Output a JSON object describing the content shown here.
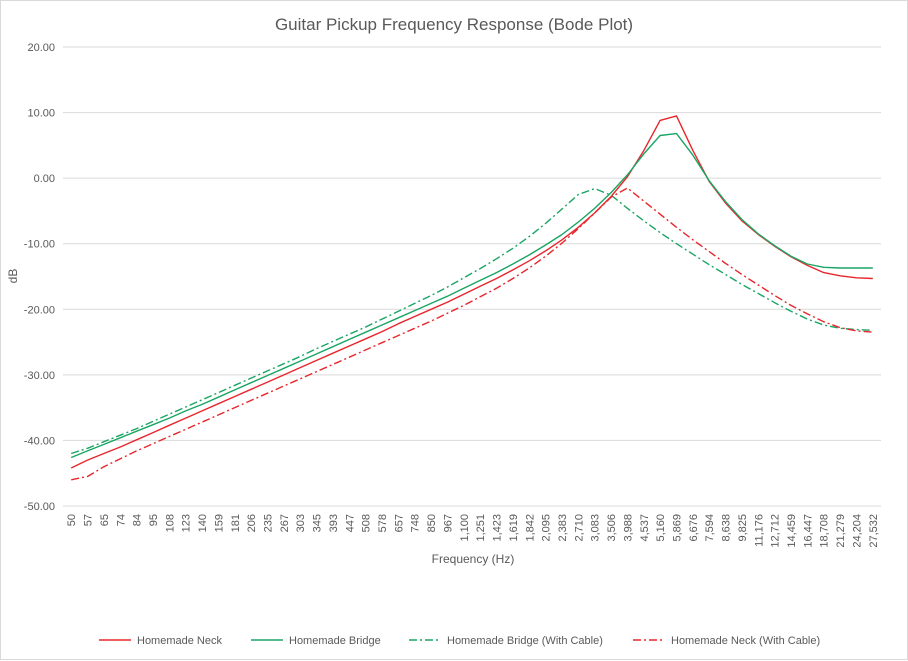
{
  "chart_data": {
    "type": "line",
    "title": "Guitar Pickup Frequency Response (Bode Plot)",
    "xlabel": "Frequency (Hz)",
    "ylabel": "dB",
    "ylim": [
      -50,
      20
    ],
    "y_ticks": [
      "20.00",
      "10.00",
      "0.00",
      "-10.00",
      "-20.00",
      "-30.00",
      "-40.00",
      "-50.00"
    ],
    "x_tick_labels": [
      "50",
      "57",
      "65",
      "74",
      "84",
      "95",
      "108",
      "123",
      "140",
      "159",
      "181",
      "206",
      "235",
      "267",
      "303",
      "345",
      "393",
      "447",
      "508",
      "578",
      "657",
      "748",
      "850",
      "967",
      "1,100",
      "1,251",
      "1,423",
      "1,619",
      "1,842",
      "2,095",
      "2,383",
      "2,710",
      "3,083",
      "3,506",
      "3,988",
      "4,537",
      "5,160",
      "5,869",
      "6,676",
      "7,594",
      "8,638",
      "9,825",
      "11,176",
      "12,712",
      "14,459",
      "16,447",
      "18,708",
      "21,279",
      "24,204",
      "27,532"
    ],
    "grid": true,
    "legend_position": "bottom",
    "series": [
      {
        "name": "Homemade Neck",
        "color": "#e8262c",
        "dash": "solid",
        "x": [
          50,
          57,
          65,
          74,
          84,
          95,
          108,
          123,
          140,
          159,
          181,
          206,
          235,
          267,
          303,
          345,
          393,
          447,
          508,
          578,
          657,
          748,
          850,
          967,
          1100,
          1251,
          1423,
          1619,
          1842,
          2095,
          2383,
          2710,
          3083,
          3506,
          3988,
          4537,
          5160,
          5869,
          6676,
          7594,
          8638,
          9825,
          11176,
          12712,
          14459,
          16447,
          18708,
          21279,
          24204,
          27532
        ],
        "y": [
          -44.2,
          -43.0,
          -42.0,
          -41.0,
          -39.9,
          -38.8,
          -37.7,
          -36.6,
          -35.5,
          -34.4,
          -33.3,
          -32.2,
          -31.1,
          -30.0,
          -28.9,
          -27.8,
          -26.7,
          -25.6,
          -24.5,
          -23.4,
          -22.2,
          -21.1,
          -20.0,
          -18.9,
          -17.7,
          -16.5,
          -15.3,
          -14.0,
          -12.6,
          -11.1,
          -9.4,
          -7.5,
          -5.3,
          -2.8,
          0.2,
          4.2,
          8.8,
          9.5,
          4.2,
          -0.5,
          -3.8,
          -6.5,
          -8.6,
          -10.4,
          -12.0,
          -13.3,
          -14.4,
          -14.9,
          -15.2,
          -15.3
        ]
      },
      {
        "name": "Homemade Bridge",
        "color": "#1aa564",
        "dash": "solid",
        "x": [
          50,
          57,
          65,
          74,
          84,
          95,
          108,
          123,
          140,
          159,
          181,
          206,
          235,
          267,
          303,
          345,
          393,
          447,
          508,
          578,
          657,
          748,
          850,
          967,
          1100,
          1251,
          1423,
          1619,
          1842,
          2095,
          2383,
          2710,
          3083,
          3506,
          3988,
          4537,
          5160,
          5869,
          6676,
          7594,
          8638,
          9825,
          11176,
          12712,
          14459,
          16447,
          18708,
          21279,
          24204,
          27532
        ],
        "y": [
          -42.6,
          -41.6,
          -40.6,
          -39.6,
          -38.6,
          -37.6,
          -36.6,
          -35.5,
          -34.5,
          -33.4,
          -32.3,
          -31.2,
          -30.1,
          -29.0,
          -27.9,
          -26.8,
          -25.7,
          -24.6,
          -23.5,
          -22.4,
          -21.3,
          -20.2,
          -19.1,
          -18.0,
          -16.8,
          -15.6,
          -14.4,
          -13.1,
          -11.7,
          -10.2,
          -8.6,
          -6.7,
          -4.6,
          -2.2,
          0.5,
          3.7,
          6.5,
          6.8,
          3.5,
          -0.4,
          -3.6,
          -6.3,
          -8.5,
          -10.3,
          -11.9,
          -13.1,
          -13.6,
          -13.7,
          -13.7,
          -13.7
        ]
      },
      {
        "name": "Homemade Bridge (With Cable)",
        "color": "#1aa564",
        "dash": "dashdot",
        "x": [
          50,
          57,
          65,
          74,
          84,
          95,
          108,
          123,
          140,
          159,
          181,
          206,
          235,
          267,
          303,
          345,
          393,
          447,
          508,
          578,
          657,
          748,
          850,
          967,
          1100,
          1251,
          1423,
          1619,
          1842,
          2095,
          2383,
          2710,
          3083,
          3506,
          3988,
          4537,
          5160,
          5869,
          6676,
          7594,
          8638,
          9825,
          11176,
          12712,
          14459,
          16447,
          18708,
          21279,
          24204,
          27532
        ],
        "y": [
          -42.0,
          -41.2,
          -40.2,
          -39.2,
          -38.2,
          -37.1,
          -36.0,
          -34.9,
          -33.8,
          -32.7,
          -31.6,
          -30.5,
          -29.4,
          -28.3,
          -27.2,
          -26.0,
          -24.9,
          -23.8,
          -22.7,
          -21.5,
          -20.3,
          -19.1,
          -17.9,
          -16.6,
          -15.2,
          -13.8,
          -12.3,
          -10.7,
          -8.9,
          -6.9,
          -4.7,
          -2.5,
          -1.6,
          -2.6,
          -4.6,
          -6.5,
          -8.3,
          -10.0,
          -11.6,
          -13.2,
          -14.7,
          -16.2,
          -17.6,
          -19.0,
          -20.3,
          -21.5,
          -22.4,
          -22.9,
          -23.1,
          -23.2
        ]
      },
      {
        "name": "Homemade Neck (With Cable)",
        "color": "#e8262c",
        "dash": "dashdot",
        "x": [
          50,
          57,
          65,
          74,
          84,
          95,
          108,
          123,
          140,
          159,
          181,
          206,
          235,
          267,
          303,
          345,
          393,
          447,
          508,
          578,
          657,
          748,
          850,
          967,
          1100,
          1251,
          1423,
          1619,
          1842,
          2095,
          2383,
          2710,
          3083,
          3506,
          3988,
          4537,
          5160,
          5869,
          6676,
          7594,
          8638,
          9825,
          11176,
          12712,
          14459,
          16447,
          18708,
          21279,
          24204,
          27532
        ],
        "y": [
          -46.0,
          -45.5,
          -44.0,
          -42.8,
          -41.6,
          -40.5,
          -39.4,
          -38.3,
          -37.2,
          -36.1,
          -35.0,
          -33.9,
          -32.8,
          -31.7,
          -30.6,
          -29.5,
          -28.4,
          -27.3,
          -26.2,
          -25.1,
          -24.0,
          -22.9,
          -21.8,
          -20.6,
          -19.4,
          -18.1,
          -16.8,
          -15.3,
          -13.7,
          -11.9,
          -9.9,
          -7.7,
          -5.3,
          -2.9,
          -1.5,
          -3.5,
          -5.5,
          -7.5,
          -9.4,
          -11.2,
          -13.0,
          -14.7,
          -16.3,
          -17.9,
          -19.4,
          -20.7,
          -21.9,
          -22.8,
          -23.3,
          -23.5
        ]
      }
    ]
  }
}
